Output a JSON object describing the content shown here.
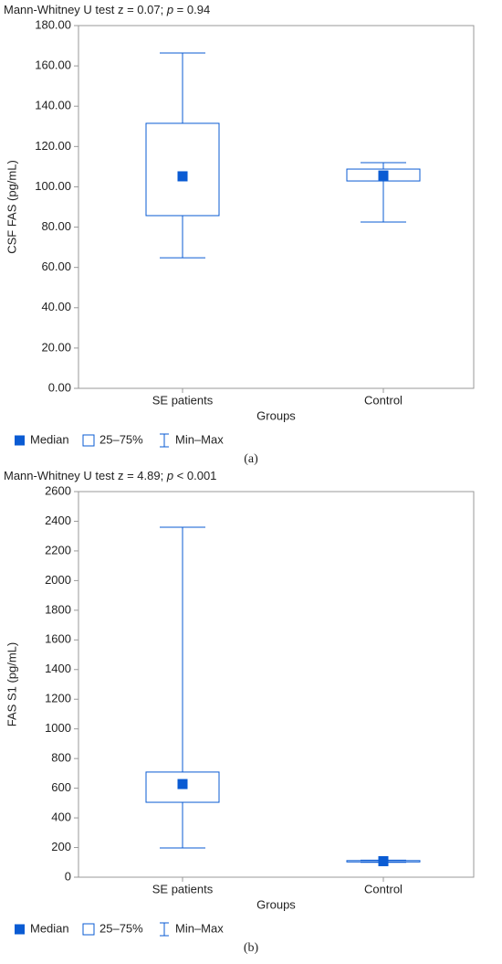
{
  "chart_data": [
    {
      "type": "box",
      "title": [
        "Mann-Whitney U test z = 0.07; ",
        "p",
        " = 0.94"
      ],
      "y_label": "CSF FAS (pg/mL)",
      "x_label": "Groups",
      "categories": [
        "SE patients",
        "Control"
      ],
      "boxes": [
        {
          "min": 64.8,
          "q1": 85.7,
          "median": 105.2,
          "q3": 131.5,
          "max": 166.4
        },
        {
          "min": 82.5,
          "q1": 102.9,
          "median": 105.6,
          "q3": 108.8,
          "max": 112
        }
      ],
      "color": "#0a5bd3",
      "ylim": [
        0,
        180
      ],
      "yticks": [
        {
          "value": 0,
          "label": "0.00"
        },
        {
          "value": 20,
          "label": "20.00"
        },
        {
          "value": 40,
          "label": "40.00"
        },
        {
          "value": 60,
          "label": "60.00"
        },
        {
          "value": 80,
          "label": "80.00"
        },
        {
          "value": 100,
          "label": "100.00"
        },
        {
          "value": 120,
          "label": "120.00"
        },
        {
          "value": 140,
          "label": "140.00"
        },
        {
          "value": 160,
          "label": "160.00"
        },
        {
          "value": 180,
          "label": "180.00"
        }
      ],
      "legend": [
        "Median",
        "25–75%",
        "Min–Max"
      ],
      "caption": "(a)"
    },
    {
      "type": "box",
      "title": [
        "Mann-Whitney U test z = 4.89; ",
        "p",
        " < 0.001"
      ],
      "y_label": "FAS S1 (pg/mL)",
      "x_label": "Groups",
      "categories": [
        "SE patients",
        "Control"
      ],
      "boxes": [
        {
          "min": 197,
          "q1": 505,
          "median": 628,
          "q3": 709,
          "max": 2360
        },
        {
          "min": 100,
          "q1": 103,
          "median": 108,
          "q3": 112,
          "max": 115
        }
      ],
      "color": "#0a5bd3",
      "ylim": [
        0,
        2600
      ],
      "yticks": [
        0,
        200,
        400,
        600,
        800,
        1000,
        1200,
        1400,
        1600,
        1800,
        2000,
        2200,
        2400,
        2600
      ],
      "legend": [
        "Median",
        "25–75%",
        "Min–Max"
      ],
      "caption": "(b)"
    }
  ]
}
